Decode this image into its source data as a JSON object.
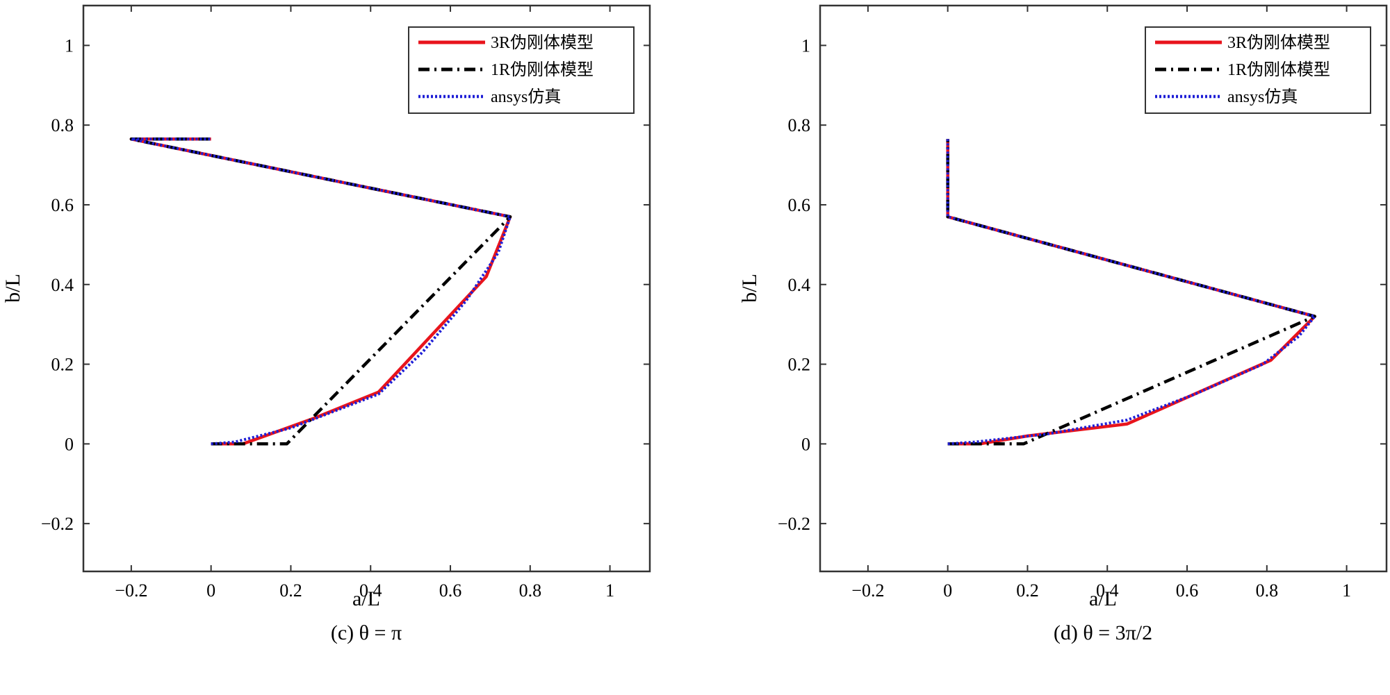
{
  "chart_data": [
    {
      "type": "line",
      "caption": "(c)   θ = π",
      "xlabel": "a/L",
      "ylabel": "b/L",
      "xlim": [
        -0.32,
        1.1
      ],
      "ylim": [
        -0.32,
        1.1
      ],
      "xticks": [
        -0.2,
        0,
        0.2,
        0.4,
        0.6,
        0.8,
        1
      ],
      "yticks": [
        -0.2,
        0,
        0.2,
        0.4,
        0.6,
        0.8,
        1
      ],
      "xtick_labels": [
        "−0.2",
        "0",
        "0.2",
        "0.4",
        "0.6",
        "0.8",
        "1"
      ],
      "ytick_labels": [
        "−0.2",
        "0",
        "0.2",
        "0.4",
        "0.6",
        "0.8",
        "1"
      ],
      "grid": false,
      "legend_position": "top-right",
      "series": [
        {
          "name": "3R伪刚体模型",
          "color": "#e8141c",
          "style": "solid",
          "x": [
            0,
            0.08,
            0.26,
            0.42,
            0.69,
            0.75,
            -0.2,
            0
          ],
          "y": [
            0,
            0,
            0.065,
            0.13,
            0.42,
            0.57,
            0.765,
            0.765
          ]
        },
        {
          "name": "1R伪刚体模型",
          "color": "#000000",
          "style": "dashdot",
          "x": [
            0,
            0.19,
            0.75,
            -0.2,
            0
          ],
          "y": [
            0,
            0,
            0.57,
            0.765,
            0.765
          ]
        },
        {
          "name": "ansys仿真",
          "color": "#1f1fd6",
          "style": "dotted",
          "x": [
            0,
            0.06,
            0.2,
            0.42,
            0.53,
            0.64,
            0.72,
            0.75,
            -0.2,
            0
          ],
          "y": [
            0,
            0.005,
            0.04,
            0.125,
            0.23,
            0.36,
            0.48,
            0.57,
            0.765,
            0.765
          ]
        }
      ]
    },
    {
      "type": "line",
      "caption": "(d)   θ = 3π/2",
      "xlabel": "a/L",
      "ylabel": "b/L",
      "xlim": [
        -0.32,
        1.1
      ],
      "ylim": [
        -0.32,
        1.1
      ],
      "xticks": [
        -0.2,
        0,
        0.2,
        0.4,
        0.6,
        0.8,
        1
      ],
      "yticks": [
        -0.2,
        0,
        0.2,
        0.4,
        0.6,
        0.8,
        1
      ],
      "xtick_labels": [
        "−0.2",
        "0",
        "0.2",
        "0.4",
        "0.6",
        "0.8",
        "1"
      ],
      "ytick_labels": [
        "−0.2",
        "0",
        "0.2",
        "0.4",
        "0.6",
        "0.8",
        "1"
      ],
      "grid": false,
      "legend_position": "top-right",
      "series": [
        {
          "name": "3R伪刚体模型",
          "color": "#e8141c",
          "style": "solid",
          "x": [
            0,
            0.08,
            0.2,
            0.45,
            0.81,
            0.92,
            0,
            0
          ],
          "y": [
            0,
            0,
            0.02,
            0.05,
            0.21,
            0.32,
            0.57,
            0.765
          ]
        },
        {
          "name": "1R伪刚体模型",
          "color": "#000000",
          "style": "dashdot",
          "x": [
            0,
            0.19,
            0.92,
            0,
            0
          ],
          "y": [
            0,
            0,
            0.32,
            0.57,
            0.765
          ]
        },
        {
          "name": "ansys仿真",
          "color": "#1f1fd6",
          "style": "dotted",
          "x": [
            0,
            0.07,
            0.25,
            0.45,
            0.62,
            0.79,
            0.88,
            0.92,
            0,
            0
          ],
          "y": [
            0,
            0.005,
            0.025,
            0.06,
            0.125,
            0.2,
            0.27,
            0.32,
            0.57,
            0.765
          ]
        }
      ]
    }
  ]
}
